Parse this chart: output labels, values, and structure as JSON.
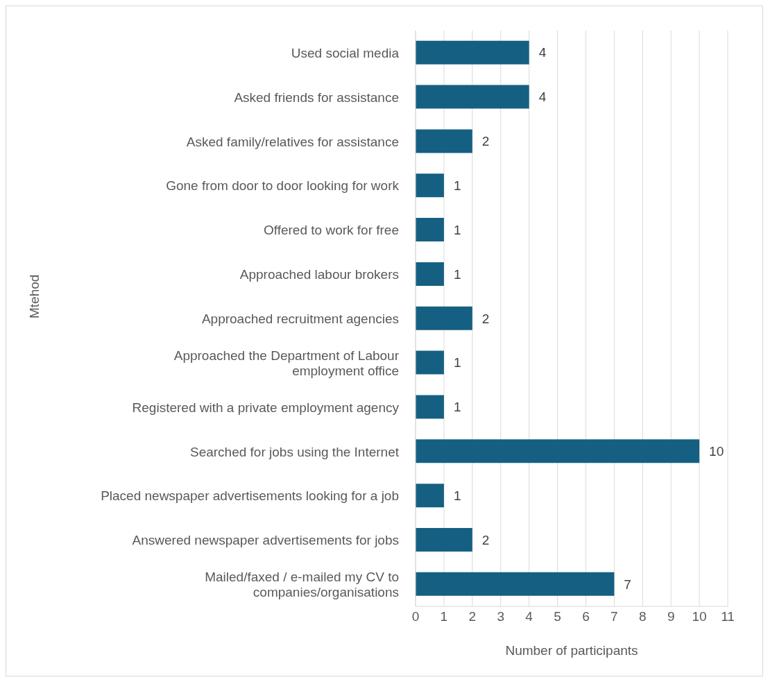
{
  "chart_data": {
    "type": "bar",
    "orientation": "horizontal",
    "xlabel": "Number of participants",
    "ylabel": "Mtehod",
    "categories": [
      "Used social media",
      "Asked friends for assistance",
      "Asked family/relatives for assistance",
      "Gone from door to door looking for work",
      "Offered to work for free",
      "Approached labour brokers",
      "Approached recruitment agencies",
      "Approached the Department of Labour\nemployment office",
      "Registered with a private employment agency",
      "Searched for jobs using the Internet",
      "Placed newspaper advertisements looking for a job",
      "Answered newspaper advertisements for jobs",
      "Mailed/faxed / e-mailed my CV to\ncompanies/organisations"
    ],
    "values": [
      4,
      4,
      2,
      1,
      1,
      1,
      2,
      1,
      1,
      10,
      1,
      2,
      7
    ],
    "color": "#156082",
    "xlim": [
      0,
      11
    ],
    "xticks": [
      0,
      1,
      2,
      3,
      4,
      5,
      6,
      7,
      8,
      9,
      10,
      11
    ],
    "grid": "x",
    "data_labels": true,
    "legend": false
  }
}
